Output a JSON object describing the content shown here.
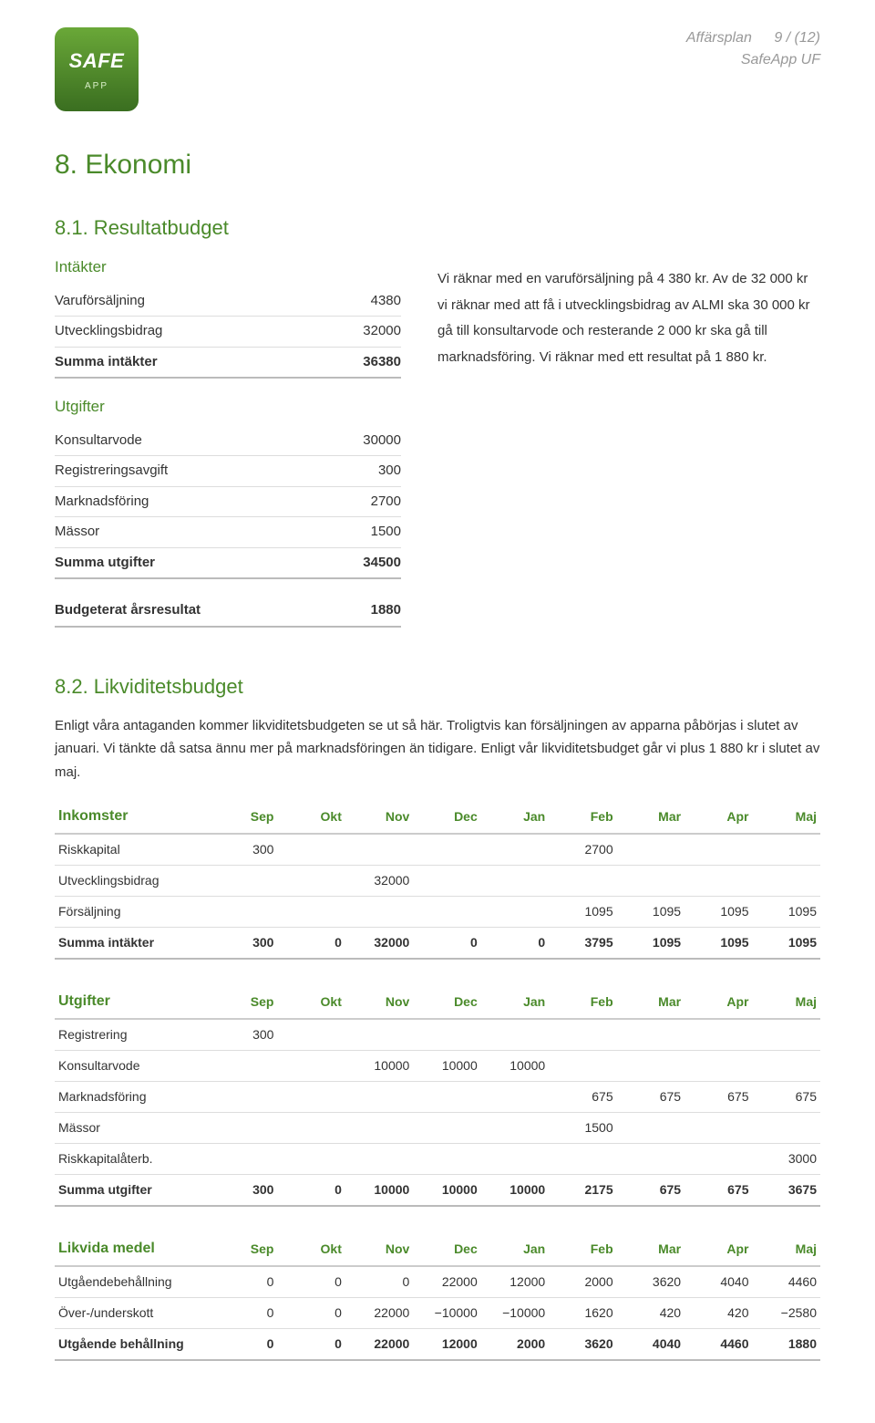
{
  "header": {
    "logo_brand": "SAFE",
    "logo_sub": "APP",
    "doc_title": "Affärsplan",
    "doc_subtitle": "SafeApp UF",
    "page_indicator": "9 / (12)"
  },
  "section_title": "8. Ekonomi",
  "result_budget": {
    "title": "8.1. Resultatbudget",
    "intakter_label": "Intäkter",
    "utgifter_label": "Utgifter",
    "rows_intakter": [
      {
        "label": "Varuförsäljning",
        "value": "4380"
      },
      {
        "label": "Utvecklingsbidrag",
        "value": "32000"
      }
    ],
    "sum_intakter": {
      "label": "Summa intäkter",
      "value": "36380"
    },
    "rows_utgifter": [
      {
        "label": "Konsultarvode",
        "value": "30000"
      },
      {
        "label": "Registreringsavgift",
        "value": "300"
      },
      {
        "label": "Marknadsföring",
        "value": "2700"
      },
      {
        "label": "Mässor",
        "value": "1500"
      }
    ],
    "sum_utgifter": {
      "label": "Summa utgifter",
      "value": "34500"
    },
    "result_row": {
      "label": "Budgeterat årsresultat",
      "value": "1880"
    },
    "side_text": "Vi räknar med en varuförsäljning på 4 380 kr. Av de 32 000 kr vi räknar med att få i utvecklingsbidrag av ALMI ska 30 000 kr gå till konsultarvode och resterande 2 000 kr ska gå till marknadsföring. Vi räknar med ett resultat på 1 880 kr."
  },
  "liquidity": {
    "title": "8.2. Likviditetsbudget",
    "intro": "Enligt våra antaganden kommer likviditetsbudgeten se ut så här. Troligtvis kan försäljningen av apparna påbörjas i slutet av januari. Vi tänkte då satsa ännu mer på marknadsföringen än tidigare. Enligt vår likviditetsbudget går vi plus 1 880 kr i slutet av maj.",
    "months": [
      "Sep",
      "Okt",
      "Nov",
      "Dec",
      "Jan",
      "Feb",
      "Mar",
      "Apr",
      "Maj"
    ],
    "income_header": "Inkomster",
    "income_rows": [
      {
        "label": "Riskkapital",
        "cells": [
          "300",
          "",
          "",
          "",
          "",
          "2700",
          "",
          "",
          ""
        ]
      },
      {
        "label": "Utvecklingsbidrag",
        "cells": [
          "",
          "",
          "32000",
          "",
          "",
          "",
          "",
          "",
          ""
        ]
      },
      {
        "label": "Försäljning",
        "cells": [
          "",
          "",
          "",
          "",
          "",
          "1095",
          "1095",
          "1095",
          "1095"
        ]
      }
    ],
    "income_sum": {
      "label": "Summa intäkter",
      "cells": [
        "300",
        "0",
        "32000",
        "0",
        "0",
        "3795",
        "1095",
        "1095",
        "1095"
      ]
    },
    "expense_header": "Utgifter",
    "expense_rows": [
      {
        "label": "Registrering",
        "cells": [
          "300",
          "",
          "",
          "",
          "",
          "",
          "",
          "",
          ""
        ]
      },
      {
        "label": "Konsultarvode",
        "cells": [
          "",
          "",
          "10000",
          "10000",
          "10000",
          "",
          "",
          "",
          ""
        ]
      },
      {
        "label": "Marknadsföring",
        "cells": [
          "",
          "",
          "",
          "",
          "",
          "675",
          "675",
          "675",
          "675"
        ]
      },
      {
        "label": "Mässor",
        "cells": [
          "",
          "",
          "",
          "",
          "",
          "1500",
          "",
          "",
          ""
        ]
      },
      {
        "label": "Riskkapitalåterb.",
        "cells": [
          "",
          "",
          "",
          "",
          "",
          "",
          "",
          "",
          "3000"
        ]
      }
    ],
    "expense_sum": {
      "label": "Summa utgifter",
      "cells": [
        "300",
        "0",
        "10000",
        "10000",
        "10000",
        "2175",
        "675",
        "675",
        "3675"
      ]
    },
    "liquid_header": "Likvida medel",
    "liquid_rows": [
      {
        "label": "Utgåendebehållning",
        "cells": [
          "0",
          "0",
          "0",
          "22000",
          "12000",
          "2000",
          "3620",
          "4040",
          "4460"
        ]
      },
      {
        "label": "Över-/underskott",
        "cells": [
          "0",
          "0",
          "22000",
          "−10000",
          "−10000",
          "1620",
          "420",
          "420",
          "−2580"
        ]
      }
    ],
    "liquid_sum": {
      "label": "Utgående behållning",
      "cells": [
        "0",
        "0",
        "22000",
        "12000",
        "2000",
        "3620",
        "4040",
        "4460",
        "1880"
      ]
    }
  },
  "colors": {
    "accent": "#4a8a2a",
    "muted": "#999999",
    "border": "#dddddd"
  }
}
